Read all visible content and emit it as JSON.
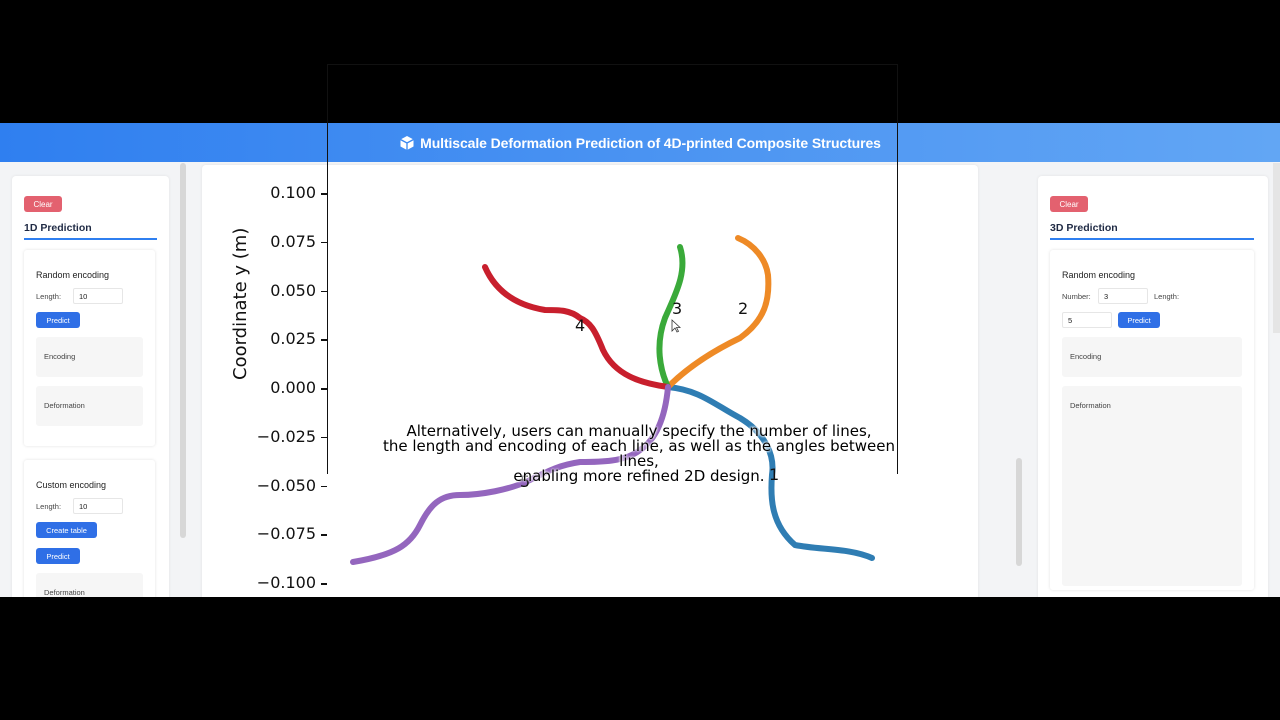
{
  "header": {
    "title": "Multiscale Deformation Prediction of 4D-printed Composite Structures"
  },
  "left": {
    "clear_label": "Clear",
    "section_title": "1D Prediction",
    "random": {
      "title": "Random encoding",
      "length_label": "Length:",
      "length_value": "10",
      "predict_label": "Predict",
      "encoding_label": "Encoding",
      "deformation_label": "Deformation"
    },
    "custom": {
      "title": "Custom encoding",
      "length_label": "Length:",
      "length_value": "10",
      "create_table_label": "Create table",
      "predict_label": "Predict",
      "deformation_label": "Deformation"
    }
  },
  "right": {
    "clear_label": "Clear",
    "section_title": "3D Prediction",
    "random": {
      "title": "Random encoding",
      "number_label": "Number:",
      "number_value": "3",
      "length_label": "Length:",
      "length_value": "5",
      "predict_label": "Predict",
      "encoding_label": "Encoding",
      "deformation_label": "Deformation"
    }
  },
  "plot": {
    "ylabel": "Coordinate y (m)",
    "yticks": [
      "0.100",
      "0.075",
      "0.050",
      "0.025",
      "0.000",
      "−0.025",
      "−0.050",
      "−0.075",
      "−0.100"
    ],
    "line_labels": [
      "1",
      "2",
      "3",
      "4",
      "5"
    ],
    "colors": {
      "line1": "#2f7db3",
      "line2": "#ee8a26",
      "line3": "#3aaa3a",
      "line4": "#c81f2d",
      "line5": "#9466be"
    }
  },
  "subtitle": {
    "line1": "Alternatively, users can manually specify the number of lines,",
    "line2": "the length and encoding of each line, as well as the angles between lines,",
    "line3": "enabling more refined 2D design."
  }
}
